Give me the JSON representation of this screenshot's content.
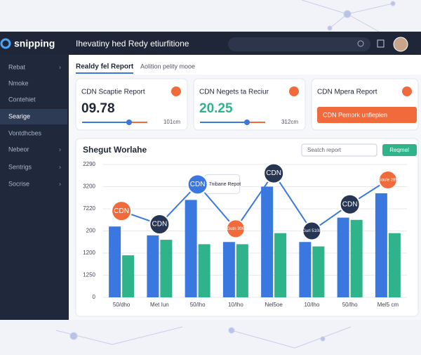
{
  "topbar": {
    "logo": "snipping",
    "title": "Ihevatiny hed Redy etiurfitione"
  },
  "sidebar": {
    "items": [
      "Rebat",
      "Nmoke",
      "Contehiet",
      "Searige",
      "Vontdhcbes",
      "Nebeor",
      "Sentrigs",
      "Socrise"
    ]
  },
  "tabs": [
    "Realdy fel Report",
    "Aolition pelity mooe"
  ],
  "cards": [
    {
      "title": "CDN Scaptie Report",
      "value": "09.78",
      "unit": "101cm"
    },
    {
      "title": "CDN Negets ta Reciur",
      "value": "20.25",
      "unit": "312cm"
    },
    {
      "title": "CDN Mpera Report",
      "button": "CDN Pemork unfiepien"
    }
  ],
  "panel": {
    "title": "Shegut Worlahe",
    "search": "Seatch report",
    "button": "Reqmel",
    "callout": "7nibane Repot"
  },
  "chart_data": {
    "type": "bar",
    "categories": [
      "50/dho",
      "Met Iun",
      "50/lho",
      "10/lho",
      "Nel5oe",
      "10/lho",
      "50/lho",
      "Mel5 cm"
    ],
    "ylim": [
      0,
      6
    ],
    "yticks": [
      {
        "value": 0,
        "label": "0"
      },
      {
        "value": 1,
        "label": "1250"
      },
      {
        "value": 2,
        "label": "1200"
      },
      {
        "value": 3,
        "label": "200"
      },
      {
        "value": 4,
        "label": "7220"
      },
      {
        "value": 5,
        "label": "3200"
      },
      {
        "value": 6,
        "label": "2290"
      }
    ],
    "grid": true,
    "series": [
      {
        "color": "#3a78e0",
        "values": [
          3.2,
          2.8,
          4.4,
          2.5,
          5.0,
          2.5,
          3.6,
          4.7
        ]
      },
      {
        "color": "#2fb38a",
        "values": [
          1.9,
          2.6,
          2.4,
          2.4,
          2.9,
          2.3,
          3.5,
          2.9
        ]
      }
    ],
    "line": {
      "color": "#3a78e0",
      "values": [
        3.9,
        3.3,
        5.1,
        3.1,
        5.6,
        3.0,
        4.2,
        5.3
      ],
      "labels": [
        "CDN",
        "CDN",
        "CDN",
        "Gutn 306",
        "CDN",
        "Gurl 5108",
        "CDN",
        "Goule 299"
      ],
      "colors": [
        "#f06a3c",
        "#263552",
        "#3a78e0",
        "#f06a3c",
        "#263552",
        "#263552",
        "#263552",
        "#f06a3c"
      ]
    }
  }
}
